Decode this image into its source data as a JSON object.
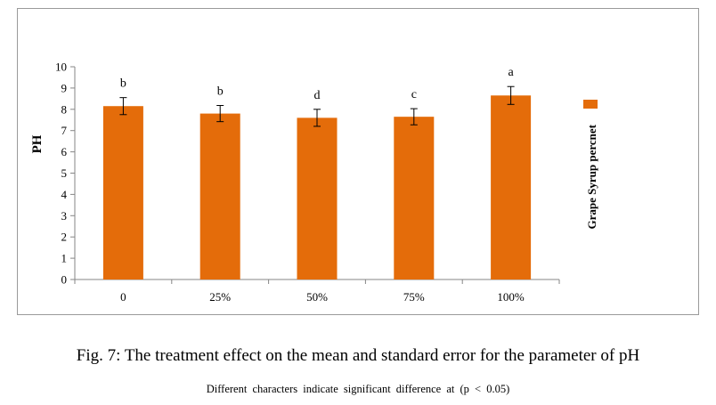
{
  "chart_data": {
    "type": "bar",
    "categories": [
      "0",
      "25%",
      "50%",
      "75%",
      "100%"
    ],
    "series": [
      {
        "name": "Grape Syrup percnet",
        "values": [
          8.15,
          7.8,
          7.6,
          7.65,
          8.65
        ],
        "errors": [
          0.4,
          0.38,
          0.4,
          0.38,
          0.42
        ],
        "labels": [
          "b",
          "b",
          "d",
          "c",
          "a"
        ],
        "color": "#E46C0A"
      }
    ],
    "xlabel": "",
    "ylabel": "PH",
    "ylim": [
      0,
      10
    ],
    "yticks": [
      "0",
      "1",
      "2",
      "3",
      "4",
      "5",
      "6",
      "7",
      "8",
      "9",
      "10"
    ],
    "grid": false,
    "legend": "right"
  },
  "caption": {
    "title": "Fig. 7: The treatment effect on the mean and standard error for the parameter of pH",
    "note": "Different characters indicate significant difference at (p < 0.05)"
  }
}
